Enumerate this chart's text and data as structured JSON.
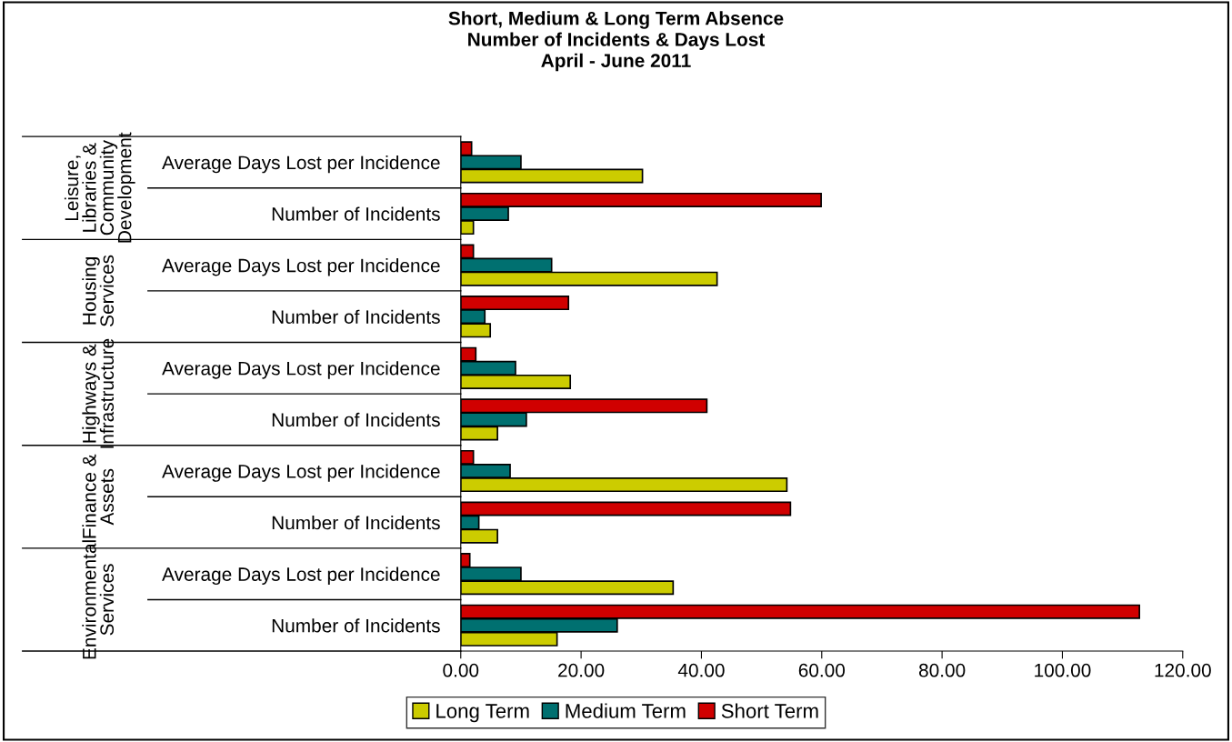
{
  "chart_data": {
    "type": "bar",
    "orientation": "horizontal",
    "title": "Short, Medium & Long Term Absence\nNumber of Incidents & Days Lost\nApril - June 2011",
    "categories": [
      "Average Days Lost per Incidence",
      "Number of Incidents",
      "Average Days Lost per Incidence",
      "Number of Incidents",
      "Average Days Lost per Incidence",
      "Number of Incidents",
      "Average Days Lost per Incidence",
      "Number of Incidents",
      "Average Days Lost per Incidence",
      "Number of Incidents"
    ],
    "annotations": [
      "Leisure,\nLibraries &\nCommunity\nDevelopment",
      "Housing\nServices",
      "Highways &\nInfrastructure",
      "Finance &\nAssets",
      "Environmental\nServices"
    ],
    "series": [
      {
        "name": "Long Term",
        "color": "#cccc00",
        "values": [
          30.2,
          2.1,
          42.6,
          4.9,
          18.2,
          6.1,
          54.2,
          6.1,
          35.3,
          16.0
        ]
      },
      {
        "name": "Medium Term",
        "color": "#007070",
        "values": [
          10.0,
          7.9,
          15.1,
          4.0,
          9.1,
          10.9,
          8.2,
          3.0,
          10.0,
          26.0
        ]
      },
      {
        "name": "Short Term",
        "color": "#d00000",
        "values": [
          1.8,
          59.9,
          2.1,
          17.9,
          2.5,
          40.9,
          2.1,
          54.8,
          1.5,
          112.8
        ]
      }
    ],
    "xlim": [
      0,
      120
    ],
    "xticks": [
      {
        "value": 0,
        "label": "0.00"
      },
      {
        "value": 20,
        "label": "20.00"
      },
      {
        "value": 40,
        "label": "40.00"
      },
      {
        "value": 60,
        "label": "60.00"
      },
      {
        "value": 80,
        "label": "80.00"
      },
      {
        "value": 100,
        "label": "100.00"
      },
      {
        "value": 120,
        "label": "120.00"
      }
    ],
    "legend": "bottom",
    "grid": false
  }
}
